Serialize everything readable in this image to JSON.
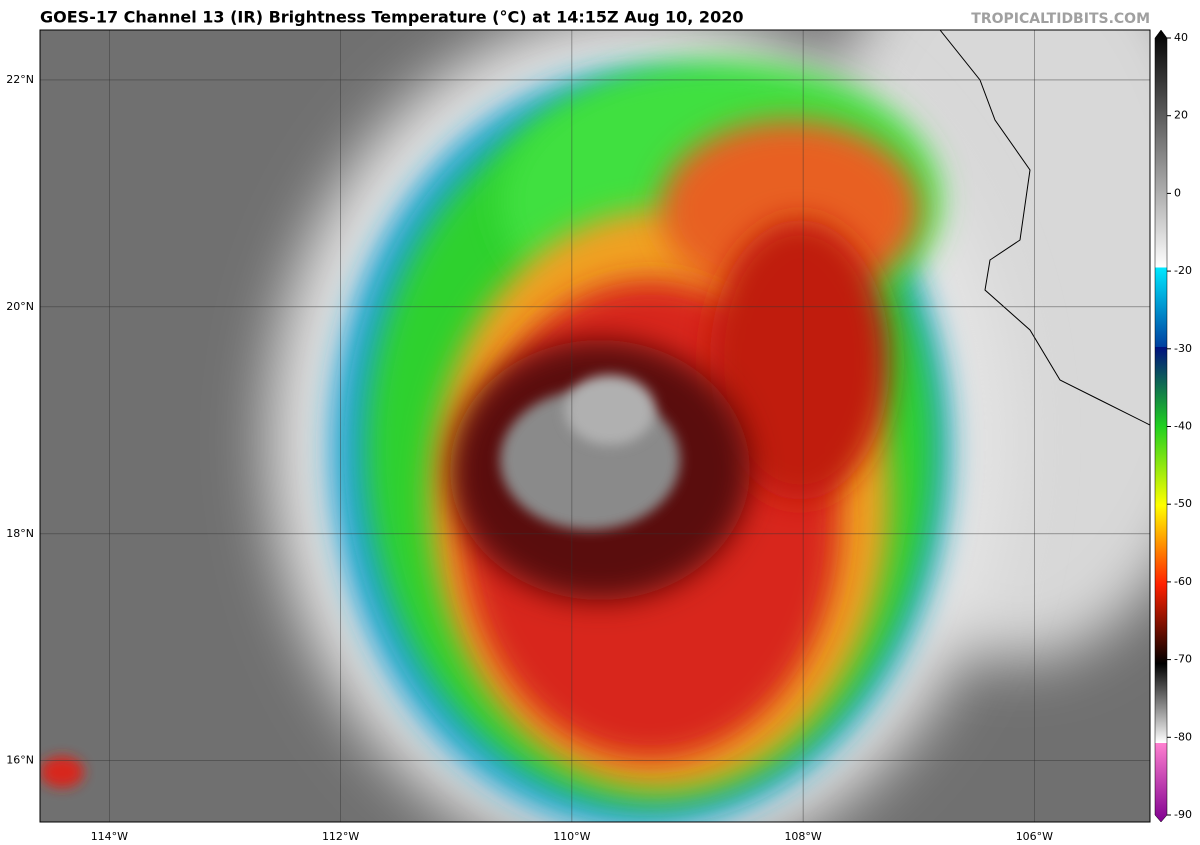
{
  "header": {
    "title": "GOES-17 Channel 13 (IR) Brightness Temperature (°C) at 14:15Z Aug 10, 2020",
    "credit": "TROPICALTIDBITS.COM"
  },
  "map": {
    "lon_range": [
      -114.6,
      -105.0
    ],
    "lat_range": [
      15.46,
      22.44
    ],
    "lat_ticks": [
      {
        "value": 16,
        "label": "16°N"
      },
      {
        "value": 18,
        "label": "18°N"
      },
      {
        "value": 20,
        "label": "20°N"
      },
      {
        "value": 22,
        "label": "22°N"
      }
    ],
    "lon_ticks": [
      {
        "value": -114,
        "label": "114°W"
      },
      {
        "value": -112,
        "label": "112°W"
      },
      {
        "value": -110,
        "label": "110°W"
      },
      {
        "value": -108,
        "label": "108°W"
      },
      {
        "value": -106,
        "label": "106°W"
      }
    ]
  },
  "colorbar": {
    "ticks": [
      40,
      20,
      0,
      -20,
      -30,
      -40,
      -50,
      -60,
      -70,
      -80,
      -90
    ]
  }
}
